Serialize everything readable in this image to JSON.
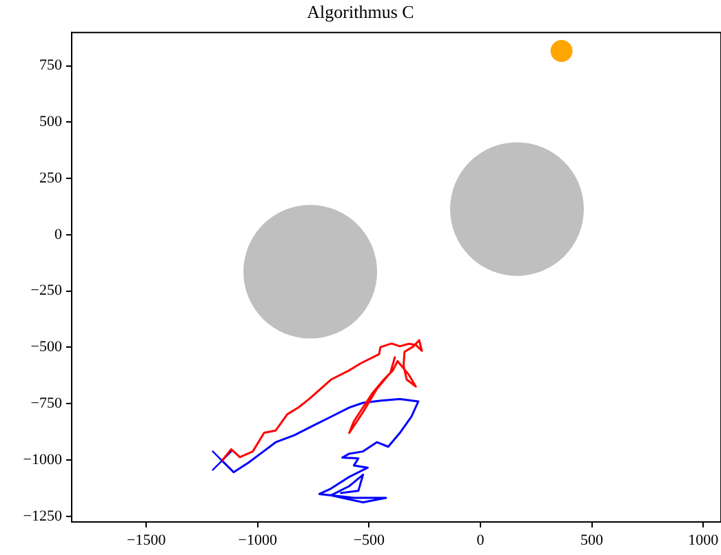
{
  "chart_data": {
    "type": "line",
    "title": "Algorithmus C",
    "xlim": [
      -1835,
      1080
    ],
    "ylim": [
      -1275,
      898
    ],
    "xticks": [
      {
        "value": -1500,
        "label": "−1500"
      },
      {
        "value": -1000,
        "label": "−1000"
      },
      {
        "value": -500,
        "label": "−500"
      },
      0,
      500,
      1000
    ],
    "yticks": [
      {
        "value": -1250,
        "label": "−1250"
      },
      {
        "value": -1000,
        "label": "−1000"
      },
      {
        "value": -750,
        "label": "−750"
      },
      {
        "value": -500,
        "label": "−500"
      },
      {
        "value": -250,
        "label": "−250"
      },
      0,
      250,
      500,
      750
    ],
    "grid": false,
    "legend": false,
    "marker": "none",
    "line_style": "solid",
    "series": [
      {
        "type": "bubble",
        "marker": "circle",
        "color": "#bfbfbf",
        "x": [
          -764,
          164
        ],
        "values": [
          -164,
          114
        ],
        "sizes": [
          1,
          1
        ]
      },
      {
        "type": "bubble",
        "marker": "circle",
        "color": "#ffa500",
        "x": [
          364
        ],
        "values": [
          816
        ],
        "sizes": [
          0.027
        ]
      },
      {
        "type": "line",
        "color": "#ff0000",
        "x": [
          -1160,
          -1119,
          -1080,
          -1022,
          -971,
          -919,
          -867,
          -816,
          -764,
          -671,
          -589,
          -538,
          -455,
          -449,
          -399,
          -362,
          -321,
          -290,
          -263,
          -275,
          -300,
          -341,
          -345,
          -331,
          -290,
          -321,
          -372,
          -393,
          -434,
          -486,
          -527,
          -568,
          -589,
          -527,
          -465,
          -404,
          -383
        ],
        "values": [
          -1003,
          -952,
          -987,
          -962,
          -879,
          -869,
          -797,
          -766,
          -725,
          -643,
          -602,
          -571,
          -530,
          -499,
          -483,
          -495,
          -484,
          -489,
          -515,
          -468,
          -495,
          -520,
          -581,
          -643,
          -674,
          -622,
          -561,
          -602,
          -643,
          -705,
          -766,
          -828,
          -880,
          -787,
          -684,
          -612,
          -540
        ]
      },
      {
        "type": "line",
        "color": "#0000ff",
        "x": [
          -1160,
          -1108,
          -1043,
          -1001,
          -919,
          -836,
          -754,
          -671,
          -589,
          -527,
          -445,
          -362,
          -279,
          -310,
          -362,
          -414,
          -465,
          -527,
          -589,
          -620,
          -548,
          -568,
          -506,
          -589,
          -671,
          -723,
          -568,
          -424,
          -527,
          -671,
          -589,
          -527,
          -548,
          -630
        ],
        "values": [
          -1003,
          -1054,
          -1013,
          -982,
          -921,
          -890,
          -849,
          -808,
          -767,
          -746,
          -736,
          -729,
          -740,
          -808,
          -880,
          -941,
          -921,
          -962,
          -972,
          -989,
          -993,
          -1024,
          -1034,
          -1075,
          -1127,
          -1151,
          -1168,
          -1168,
          -1188,
          -1157,
          -1116,
          -1065,
          -1137,
          -1147
        ]
      },
      {
        "type": "scatter",
        "color": "#0000ff",
        "marker": "cross",
        "x": [
          -1160
        ],
        "values": [
          -1003
        ]
      }
    ]
  }
}
